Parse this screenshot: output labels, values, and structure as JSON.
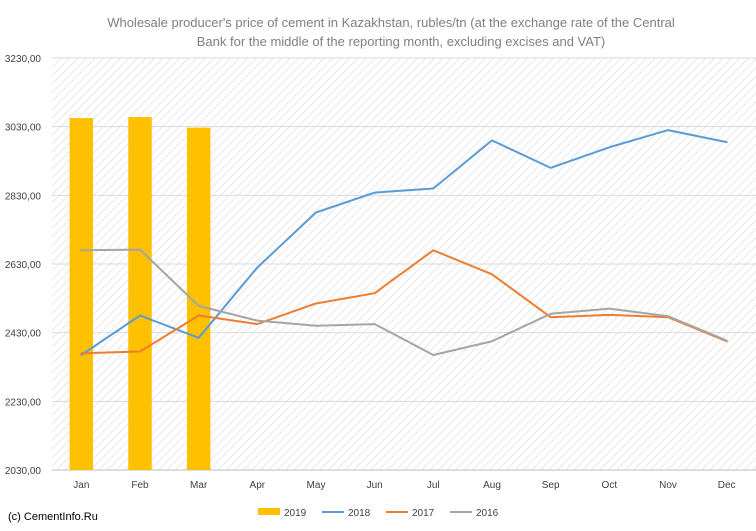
{
  "chart_data": {
    "type": "bar",
    "title": "Wholesale producer's price of cement in Kazakhstan, rubles/tn (at the exchange rate of the Central Bank for the middle of the reporting month, excluding excises and VAT)",
    "title_lines": [
      "Wholesale producer's price of cement in Kazakhstan, rubles/tn (at the exchange rate of the Central",
      "Bank for the middle of the reporting month, excluding excises and VAT)"
    ],
    "categories": [
      "Jan",
      "Feb",
      "Mar",
      "Apr",
      "May",
      "Jun",
      "Jul",
      "Aug",
      "Sep",
      "Oct",
      "Nov",
      "Dec"
    ],
    "ylim": [
      2030,
      3230
    ],
    "yticks": [
      2030,
      2230,
      2430,
      2630,
      2830,
      3030,
      3230
    ],
    "ytick_labels": [
      "2030,00",
      "2230,00",
      "2430,00",
      "2630,00",
      "2830,00",
      "3030,00",
      "3230,00"
    ],
    "xlabel": "",
    "ylabel": "",
    "grid": "hatched background",
    "legend_position": "bottom",
    "series": [
      {
        "name": "2019",
        "kind": "bar",
        "color": "#ffc000",
        "values": [
          3055,
          3058,
          3027,
          null,
          null,
          null,
          null,
          null,
          null,
          null,
          null,
          null
        ]
      },
      {
        "name": "2018",
        "kind": "line",
        "color": "#5b9bd5",
        "values": [
          2365,
          2480,
          2415,
          2620,
          2780,
          2838,
          2850,
          2990,
          2910,
          2970,
          3020,
          2985
        ]
      },
      {
        "name": "2017",
        "kind": "line",
        "color": "#ed7d31",
        "values": [
          2370,
          2375,
          2480,
          2455,
          2515,
          2545,
          2670,
          2600,
          2475,
          2482,
          2475,
          2405
        ]
      },
      {
        "name": "2016",
        "kind": "line",
        "color": "#a5a5a5",
        "values": [
          2670,
          2672,
          2508,
          2465,
          2450,
          2455,
          2365,
          2405,
          2485,
          2500,
          2478,
          2407
        ]
      }
    ]
  },
  "source_label": "(c) CementInfo.Ru"
}
